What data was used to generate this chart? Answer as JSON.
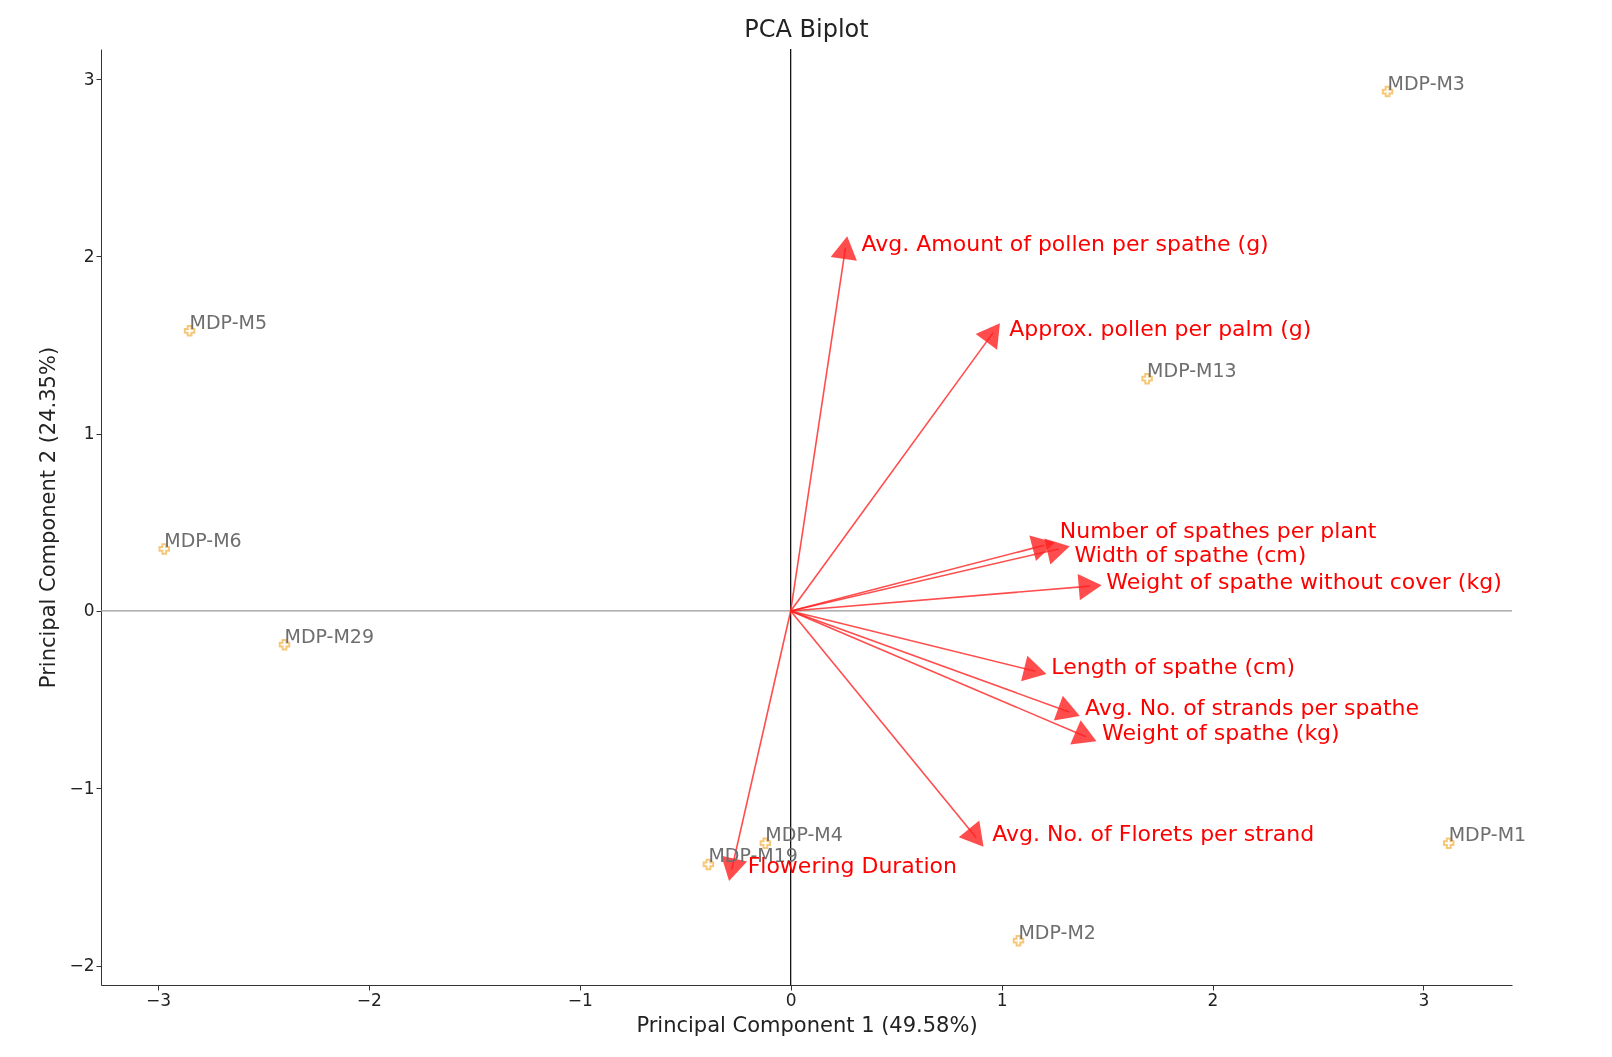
{
  "chart_data": {
    "type": "scatter",
    "title": "PCA Biplot",
    "xlabel": "Principal Component 1 (49.58%)",
    "ylabel": "Principal Component 2 (24.35%)",
    "xlim": [
      -3.27,
      3.42
    ],
    "ylim": [
      -2.11,
      3.17
    ],
    "xticks": [
      {
        "value": -3,
        "label": "−3"
      },
      {
        "value": -2,
        "label": "−2"
      },
      {
        "value": -1,
        "label": "−1"
      },
      0,
      1,
      2,
      3
    ],
    "yticks": [
      {
        "value": -2,
        "label": "−2"
      },
      {
        "value": -1,
        "label": "−1"
      },
      0,
      1,
      2,
      3
    ],
    "grid": false,
    "marker": "cross",
    "series": [
      {
        "color": "#f5c26b",
        "x": [
          2.83,
          -2.85,
          1.69,
          -2.97,
          -2.4,
          3.12,
          -0.39,
          -0.12,
          1.08
        ],
        "values": [
          2.93,
          1.58,
          1.31,
          0.35,
          -0.19,
          -1.31,
          -1.43,
          -1.31,
          -1.86
        ]
      },
      {
        "type": "line",
        "marker": "triangle",
        "color": "#ff2020",
        "x": [
          0,
          0.26
        ],
        "values": [
          0,
          2.05
        ]
      },
      {
        "type": "line",
        "marker": "triangle",
        "color": "#ff2020",
        "x": [
          0,
          0.96
        ],
        "values": [
          0,
          1.57
        ]
      },
      {
        "type": "line",
        "marker": "triangle",
        "color": "#ff2020",
        "x": [
          0,
          1.2
        ],
        "values": [
          0,
          0.37
        ]
      },
      {
        "type": "line",
        "marker": "triangle",
        "color": "#ff2020",
        "x": [
          0,
          1.27
        ],
        "values": [
          0,
          0.35
        ]
      },
      {
        "type": "line",
        "marker": "triangle",
        "color": "#ff2020",
        "x": [
          0,
          1.42
        ],
        "values": [
          0,
          0.14
        ]
      },
      {
        "type": "line",
        "marker": "triangle",
        "color": "#ff2020",
        "x": [
          0,
          1.16
        ],
        "values": [
          0,
          -0.34
        ]
      },
      {
        "type": "line",
        "marker": "triangle",
        "color": "#ff2020",
        "x": [
          0,
          1.32
        ],
        "values": [
          0,
          -0.57
        ]
      },
      {
        "type": "line",
        "marker": "triangle",
        "color": "#ff2020",
        "x": [
          0,
          1.4
        ],
        "values": [
          0,
          -0.71
        ]
      },
      {
        "type": "line",
        "marker": "triangle",
        "color": "#ff2020",
        "x": [
          0,
          0.88
        ],
        "values": [
          0,
          -1.28
        ]
      },
      {
        "type": "line",
        "marker": "triangle",
        "color": "#ff2020",
        "x": [
          0,
          -0.28
        ],
        "values": [
          0,
          -1.46
        ]
      }
    ],
    "ref_lines": [
      {
        "axis": "x",
        "value": 0,
        "color": "#000000"
      },
      {
        "axis": "y",
        "value": 0,
        "color": "#999999"
      }
    ],
    "annotations": [
      {
        "text": "MDP-M3",
        "x": 2.83,
        "y": 2.93
      },
      {
        "text": "MDP-M5",
        "x": -2.85,
        "y": 1.58
      },
      {
        "text": "MDP-M13",
        "x": 1.69,
        "y": 1.31
      },
      {
        "text": "MDP-M6",
        "x": -2.97,
        "y": 0.35
      },
      {
        "text": "MDP-M29",
        "x": -2.4,
        "y": -0.19
      },
      {
        "text": "MDP-M1",
        "x": 3.12,
        "y": -1.31
      },
      {
        "text": "MDP-M19",
        "x": -0.39,
        "y": -1.43
      },
      {
        "text": "MDP-M4",
        "x": -0.12,
        "y": -1.31
      },
      {
        "text": "MDP-M2",
        "x": 1.08,
        "y": -1.86
      },
      {
        "text": "Avg. Amount of pollen per spathe (g)",
        "x": 0.26,
        "y": 2.05
      },
      {
        "text": "Approx. pollen per palm (g)",
        "x": 0.96,
        "y": 1.57
      },
      {
        "text": "Number of spathes per plant",
        "x": 1.2,
        "y": 0.37
      },
      {
        "text": "Width of spathe (cm)",
        "x": 1.27,
        "y": 0.35
      },
      {
        "text": "Weight of spathe without cover (kg)",
        "x": 1.42,
        "y": 0.14
      },
      {
        "text": "Length of spathe (cm)",
        "x": 1.16,
        "y": -0.34
      },
      {
        "text": "Avg. No. of strands per spathe",
        "x": 1.32,
        "y": -0.57
      },
      {
        "text": "Weight of spathe (kg)",
        "x": 1.4,
        "y": -0.71
      },
      {
        "text": "Avg. No. of Florets per strand",
        "x": 0.88,
        "y": -1.28
      },
      {
        "text": "Flowering Duration",
        "x": -0.28,
        "y": -1.46
      }
    ]
  }
}
